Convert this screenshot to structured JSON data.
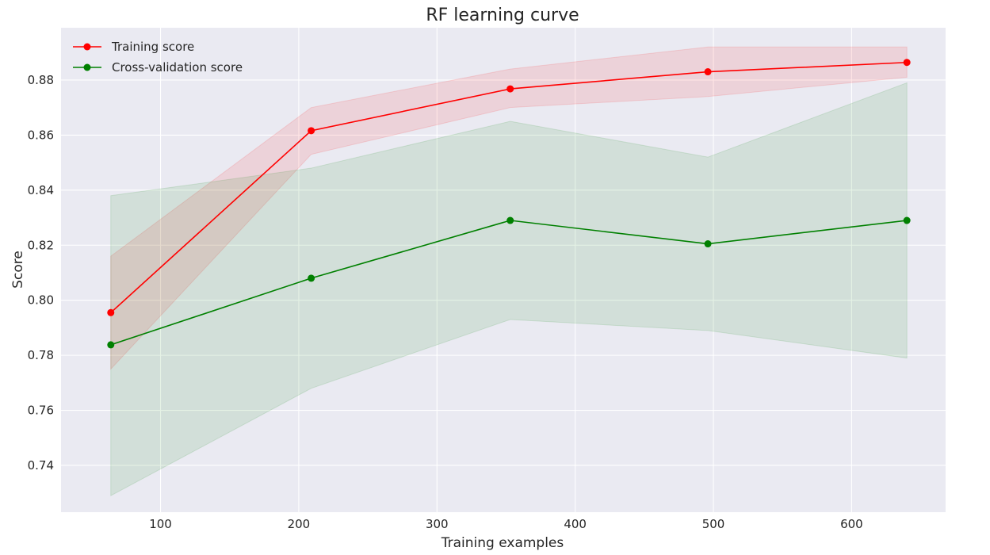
{
  "chart_data": {
    "type": "line",
    "title": "RF learning curve",
    "xlabel": "Training examples",
    "ylabel": "Score",
    "xlim": [
      28,
      668
    ],
    "ylim": [
      0.723,
      0.899
    ],
    "xticks": [
      100,
      200,
      300,
      400,
      500,
      600
    ],
    "yticks": [
      0.74,
      0.76,
      0.78,
      0.8,
      0.82,
      0.84,
      0.86,
      0.88
    ],
    "ytick_labels": [
      "0.74",
      "0.76",
      "0.78",
      "0.80",
      "0.82",
      "0.84",
      "0.86",
      "0.88"
    ],
    "grid": true,
    "legend_position": "top-left",
    "x": [
      64,
      209,
      353,
      496,
      640
    ],
    "series": [
      {
        "name": "Training score",
        "color": "#ff0000",
        "values": [
          0.7955,
          0.8616,
          0.8768,
          0.883,
          0.8864
        ],
        "band_low": [
          0.775,
          0.853,
          0.87,
          0.874,
          0.881
        ],
        "band_high": [
          0.816,
          0.87,
          0.884,
          0.892,
          0.892
        ]
      },
      {
        "name": "Cross-validation score",
        "color": "#008000",
        "values": [
          0.7838,
          0.808,
          0.829,
          0.8205,
          0.829
        ],
        "band_low": [
          0.729,
          0.768,
          0.793,
          0.789,
          0.779
        ],
        "band_high": [
          0.838,
          0.848,
          0.865,
          0.852,
          0.879
        ]
      }
    ]
  }
}
